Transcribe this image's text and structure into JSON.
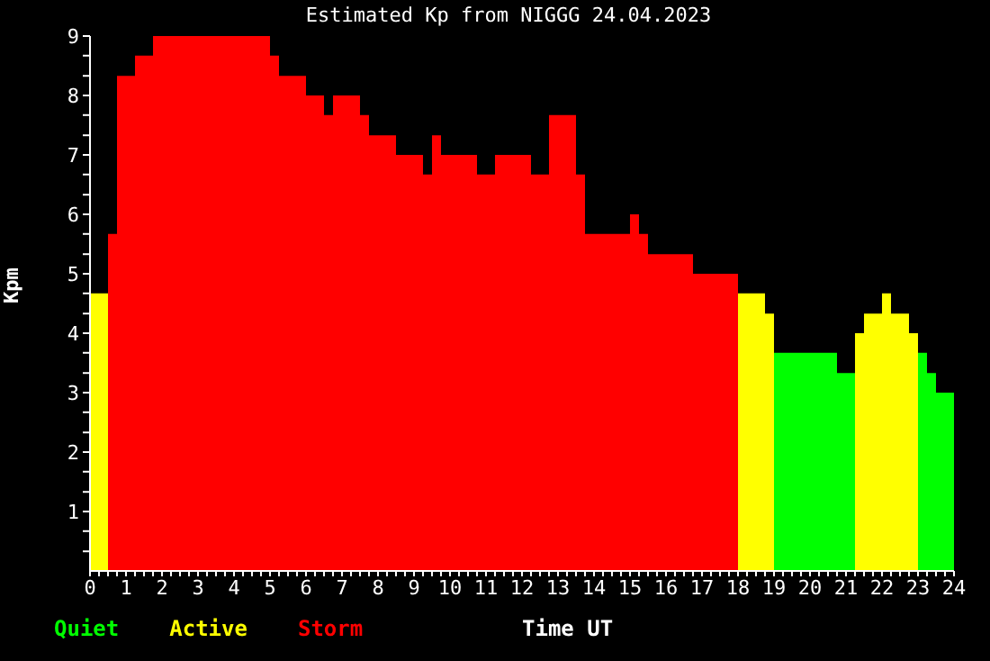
{
  "chart_data": {
    "type": "histogram",
    "title": "Estimated Kp from NIGGG 24.04.2023",
    "xlabel": "Time UT",
    "ylabel": "Kpm",
    "bins": [
      0,
      0.5,
      0.75,
      1.25,
      1.75,
      5,
      5.25,
      6,
      6.5,
      6.75,
      7.5,
      7.75,
      8.5,
      9.25,
      9.5,
      9.75,
      10.75,
      11.25,
      12.25,
      12.75,
      13.5,
      13.75,
      15,
      15.25,
      15.5,
      16.75,
      18,
      18.75,
      19,
      20.75,
      21.25,
      21.5,
      22,
      22.25,
      22.75,
      23,
      23.25,
      23.5,
      24
    ],
    "series": [
      {
        "name": "Quiet",
        "color": "#00ff00",
        "values": [
          null,
          null,
          null,
          null,
          null,
          null,
          null,
          null,
          null,
          null,
          null,
          null,
          null,
          null,
          null,
          null,
          null,
          null,
          null,
          null,
          null,
          null,
          null,
          null,
          null,
          null,
          null,
          null,
          3.67,
          3.33,
          null,
          null,
          null,
          null,
          null,
          3.67,
          3.33,
          3
        ]
      },
      {
        "name": "Active",
        "color": "#ffff00",
        "values": [
          4.67,
          null,
          null,
          null,
          null,
          null,
          null,
          null,
          null,
          null,
          null,
          null,
          null,
          null,
          null,
          null,
          null,
          null,
          null,
          null,
          null,
          null,
          null,
          null,
          null,
          null,
          4.67,
          4.33,
          null,
          null,
          4,
          4.33,
          4.67,
          4.33,
          4,
          null,
          null,
          null
        ]
      },
      {
        "name": "Storm",
        "color": "#ff0000",
        "values": [
          null,
          5.67,
          8.33,
          8.67,
          9,
          8.67,
          8.33,
          8,
          7.67,
          8,
          7.67,
          7.33,
          7,
          6.67,
          7.33,
          7,
          6.67,
          7,
          6.67,
          7.67,
          6.67,
          5.67,
          6,
          5.67,
          5.33,
          5,
          null,
          null,
          null,
          null,
          null,
          null,
          null,
          null,
          null,
          null,
          null,
          null
        ]
      }
    ],
    "xlim": [
      0,
      24
    ],
    "ylim": [
      0,
      9
    ],
    "xticks": [
      0,
      {
        "value": 0.25,
        "label": null
      },
      {
        "value": 0.5,
        "label": null
      },
      {
        "value": 0.75,
        "label": null
      },
      1,
      {
        "value": 1.25,
        "label": null
      },
      {
        "value": 1.5,
        "label": null
      },
      {
        "value": 1.75,
        "label": null
      },
      2,
      {
        "value": 2.25,
        "label": null
      },
      {
        "value": 2.5,
        "label": null
      },
      {
        "value": 2.75,
        "label": null
      },
      3,
      {
        "value": 3.25,
        "label": null
      },
      {
        "value": 3.5,
        "label": null
      },
      {
        "value": 3.75,
        "label": null
      },
      4,
      {
        "value": 4.25,
        "label": null
      },
      {
        "value": 4.5,
        "label": null
      },
      {
        "value": 4.75,
        "label": null
      },
      5,
      {
        "value": 5.25,
        "label": null
      },
      {
        "value": 5.5,
        "label": null
      },
      {
        "value": 5.75,
        "label": null
      },
      6,
      {
        "value": 6.25,
        "label": null
      },
      {
        "value": 6.5,
        "label": null
      },
      {
        "value": 6.75,
        "label": null
      },
      7,
      {
        "value": 7.25,
        "label": null
      },
      {
        "value": 7.5,
        "label": null
      },
      {
        "value": 7.75,
        "label": null
      },
      8,
      {
        "value": 8.25,
        "label": null
      },
      {
        "value": 8.5,
        "label": null
      },
      {
        "value": 8.75,
        "label": null
      },
      9,
      {
        "value": 9.25,
        "label": null
      },
      {
        "value": 9.5,
        "label": null
      },
      {
        "value": 9.75,
        "label": null
      },
      10,
      {
        "value": 10.25,
        "label": null
      },
      {
        "value": 10.5,
        "label": null
      },
      {
        "value": 10.75,
        "label": null
      },
      11,
      {
        "value": 11.25,
        "label": null
      },
      {
        "value": 11.5,
        "label": null
      },
      {
        "value": 11.75,
        "label": null
      },
      12,
      {
        "value": 12.25,
        "label": null
      },
      {
        "value": 12.5,
        "label": null
      },
      {
        "value": 12.75,
        "label": null
      },
      13,
      {
        "value": 13.25,
        "label": null
      },
      {
        "value": 13.5,
        "label": null
      },
      {
        "value": 13.75,
        "label": null
      },
      14,
      {
        "value": 14.25,
        "label": null
      },
      {
        "value": 14.5,
        "label": null
      },
      {
        "value": 14.75,
        "label": null
      },
      15,
      {
        "value": 15.25,
        "label": null
      },
      {
        "value": 15.5,
        "label": null
      },
      {
        "value": 15.75,
        "label": null
      },
      16,
      {
        "value": 16.25,
        "label": null
      },
      {
        "value": 16.5,
        "label": null
      },
      {
        "value": 16.75,
        "label": null
      },
      17,
      {
        "value": 17.25,
        "label": null
      },
      {
        "value": 17.5,
        "label": null
      },
      {
        "value": 17.75,
        "label": null
      },
      18,
      {
        "value": 18.25,
        "label": null
      },
      {
        "value": 18.5,
        "label": null
      },
      {
        "value": 18.75,
        "label": null
      },
      19,
      {
        "value": 19.25,
        "label": null
      },
      {
        "value": 19.5,
        "label": null
      },
      {
        "value": 19.75,
        "label": null
      },
      20,
      {
        "value": 20.25,
        "label": null
      },
      {
        "value": 20.5,
        "label": null
      },
      {
        "value": 20.75,
        "label": null
      },
      21,
      {
        "value": 21.25,
        "label": null
      },
      {
        "value": 21.5,
        "label": null
      },
      {
        "value": 21.75,
        "label": null
      },
      22,
      {
        "value": 22.25,
        "label": null
      },
      {
        "value": 22.5,
        "label": null
      },
      {
        "value": 22.75,
        "label": null
      },
      23,
      {
        "value": 23.25,
        "label": null
      },
      {
        "value": 23.5,
        "label": null
      },
      {
        "value": 23.75,
        "label": null
      },
      24
    ],
    "yticks": [
      {
        "value": 0.33,
        "label": null
      },
      {
        "value": 0.67,
        "label": null
      },
      1,
      {
        "value": 1.33,
        "label": null
      },
      {
        "value": 1.67,
        "label": null
      },
      2,
      {
        "value": 2.33,
        "label": null
      },
      {
        "value": 2.67,
        "label": null
      },
      3,
      {
        "value": 3.33,
        "label": null
      },
      {
        "value": 3.67,
        "label": null
      },
      4,
      {
        "value": 4.33,
        "label": null
      },
      {
        "value": 4.67,
        "label": null
      },
      5,
      {
        "value": 5.33,
        "label": null
      },
      {
        "value": 5.67,
        "label": null
      },
      6,
      {
        "value": 6.33,
        "label": null
      },
      {
        "value": 6.67,
        "label": null
      },
      7,
      {
        "value": 7.33,
        "label": null
      },
      {
        "value": 7.67,
        "label": null
      },
      8,
      {
        "value": 8.33,
        "label": null
      },
      {
        "value": 8.67,
        "label": null
      },
      9
    ],
    "legend": "bottom left",
    "grid": false
  }
}
